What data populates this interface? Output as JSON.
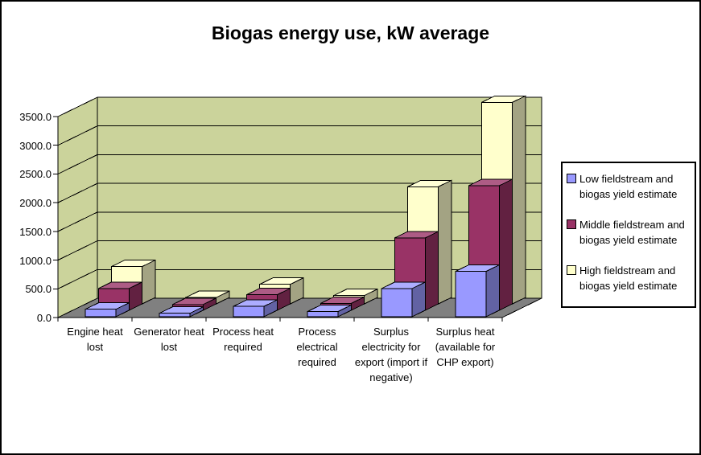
{
  "window": {
    "background": "#FFFFFF",
    "border_color": "#000000"
  },
  "chart_data": {
    "type": "bar",
    "style": "3d-column",
    "title": "Biogas energy use, kW average",
    "categories": [
      "Engine heat lost",
      "Generator heat lost",
      "Process heat required",
      "Process electrical required",
      "Surplus electricity for export (import if negative)",
      "Surplus heat (available for CHP export)"
    ],
    "series": [
      {
        "name": "Low fieldstream and biogas yield estimate",
        "color": "#9999FF",
        "values": [
          130,
          60,
          180,
          90,
          490,
          790
        ]
      },
      {
        "name": "Middle fieldstream and biogas yield estimate",
        "color": "#993366",
        "values": [
          380,
          100,
          270,
          120,
          1260,
          2170
        ]
      },
      {
        "name": "High fieldstream and biogas yield estimate",
        "color": "#FFFFCC",
        "values": [
          650,
          110,
          340,
          145,
          2040,
          3510
        ]
      }
    ],
    "xlabel": "",
    "ylabel": "",
    "ylim": [
      0,
      3500
    ],
    "y_tick_step": 500,
    "y_tick_labels": [
      "0.0",
      "500.0",
      "1000.0",
      "1500.0",
      "2000.0",
      "2500.0",
      "3000.0",
      "3500.0"
    ],
    "grid": true,
    "legend_position": "right",
    "wall_color": "#CBD39B",
    "floor_color": "#808080",
    "line_color": "#000000"
  }
}
